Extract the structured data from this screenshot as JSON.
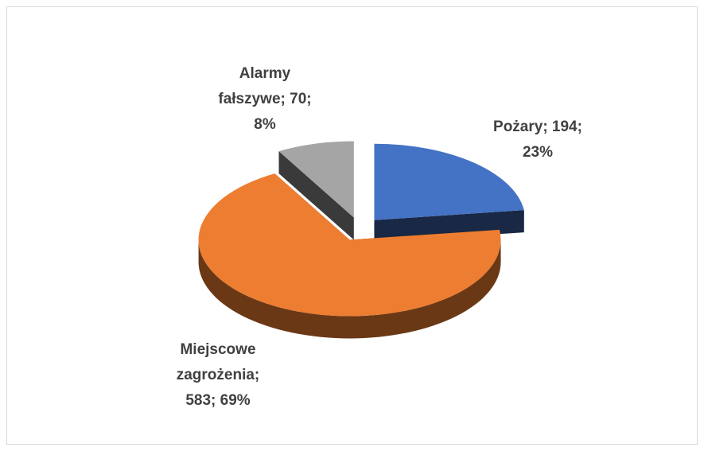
{
  "chart_data": {
    "type": "pie3d",
    "categories": [
      "Pożary",
      "Miejscowe zagrożenia",
      "Alarmy fałszywe"
    ],
    "values": [
      194,
      583,
      70
    ],
    "value_labels": [
      [
        "Pożary; 194;",
        "23%"
      ],
      [
        "Miejscowe",
        "zagrożenia;",
        "583; 69%"
      ],
      [
        "Alarmy",
        "fałszywe; 70;",
        "8%"
      ]
    ],
    "colors": [
      "#4472c4",
      "#ed7d31",
      "#a5a5a5"
    ]
  }
}
